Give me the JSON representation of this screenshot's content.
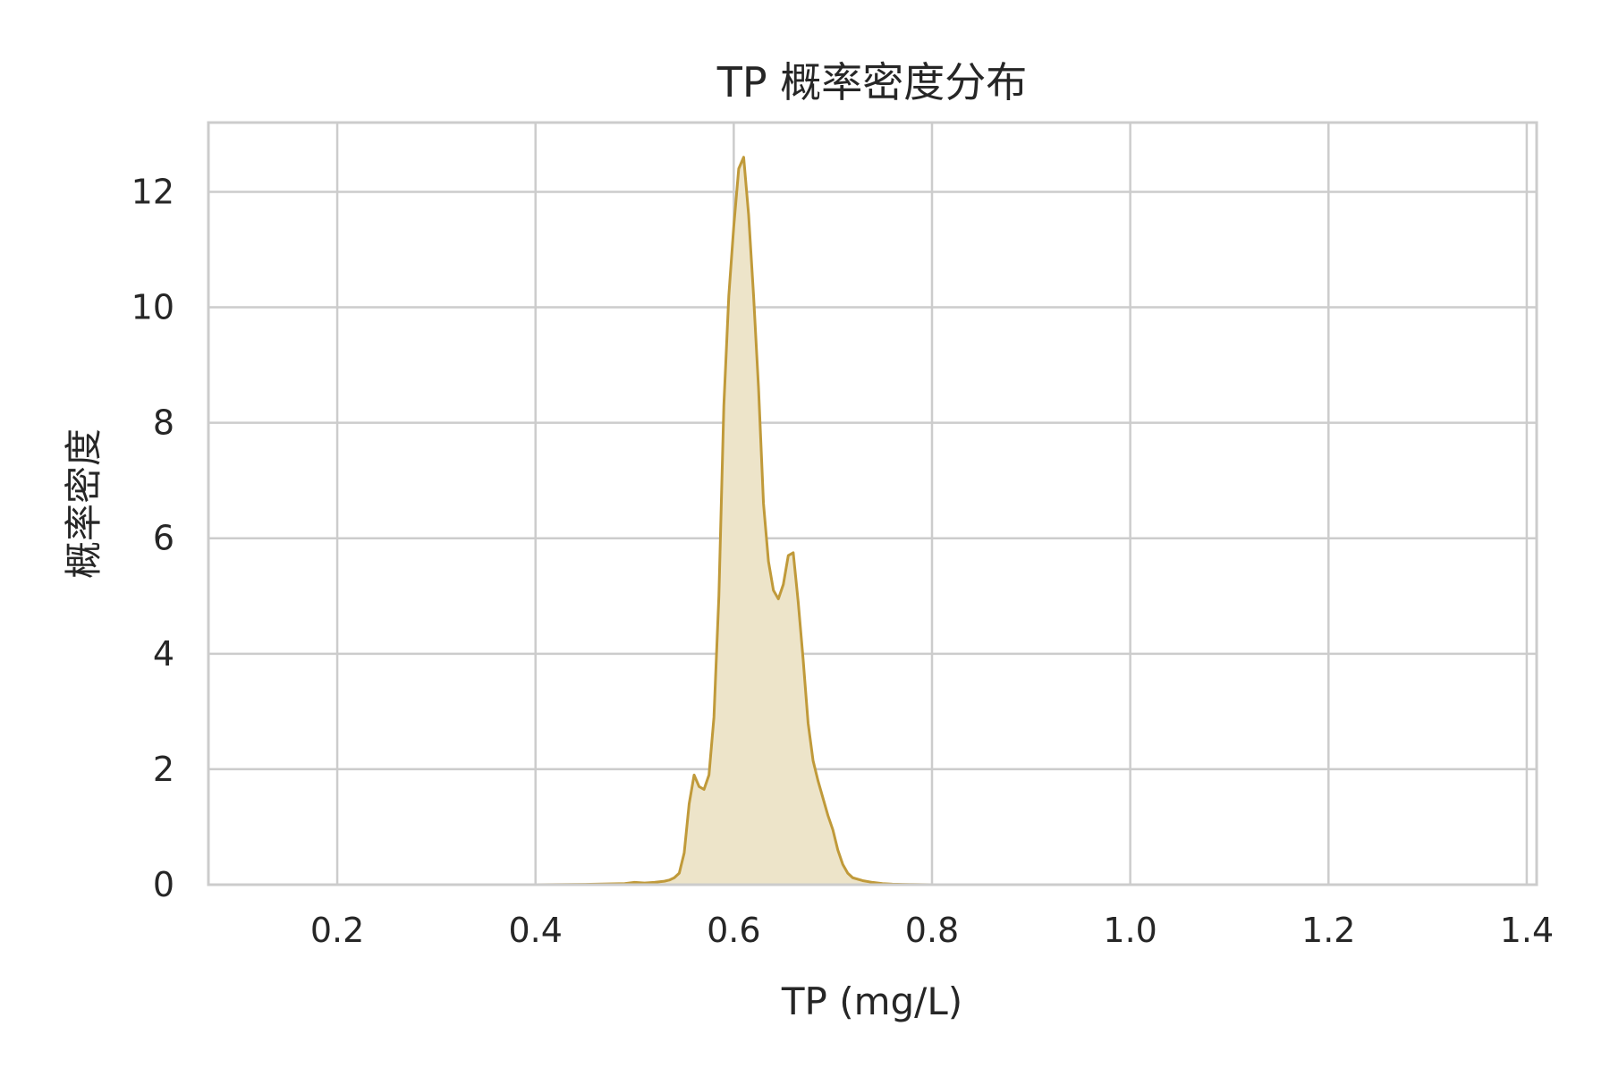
{
  "chart_data": {
    "type": "area",
    "title": "TP 概率密度分布",
    "xlabel": "TP (mg/L)",
    "ylabel": "概率密度",
    "xlim": [
      0.07,
      1.41
    ],
    "ylim": [
      0,
      13.2
    ],
    "x_ticks": [
      "0.2",
      "0.4",
      "0.6",
      "0.8",
      "1.0",
      "1.2",
      "1.4"
    ],
    "y_ticks": [
      "0",
      "2",
      "4",
      "6",
      "8",
      "10",
      "12"
    ],
    "grid": true,
    "colors": {
      "line": "#C09A3A",
      "fill": "#EDE4C9",
      "grid": "#CCCCCC",
      "frame": "#CCCCCC"
    },
    "series": [
      {
        "x": [
          0.4,
          0.45,
          0.49,
          0.5,
          0.51,
          0.52,
          0.53,
          0.535,
          0.54,
          0.545,
          0.55,
          0.555,
          0.56,
          0.565,
          0.57,
          0.575,
          0.58,
          0.585,
          0.59,
          0.595,
          0.6,
          0.605,
          0.61,
          0.615,
          0.62,
          0.625,
          0.63,
          0.635,
          0.64,
          0.645,
          0.65,
          0.655,
          0.66,
          0.665,
          0.67,
          0.675,
          0.68,
          0.685,
          0.69,
          0.695,
          0.7,
          0.705,
          0.71,
          0.715,
          0.72,
          0.73,
          0.74,
          0.75,
          0.76,
          0.77,
          0.78,
          0.79,
          0.8,
          0.82,
          0.85,
          0.9,
          1.0,
          1.38
        ],
        "y": [
          0.0,
          0.005,
          0.02,
          0.04,
          0.03,
          0.04,
          0.06,
          0.08,
          0.12,
          0.2,
          0.55,
          1.4,
          1.9,
          1.7,
          1.65,
          1.9,
          2.9,
          5.0,
          8.3,
          10.2,
          11.4,
          12.4,
          12.6,
          11.6,
          10.2,
          8.6,
          6.6,
          5.6,
          5.1,
          4.95,
          5.2,
          5.7,
          5.75,
          4.9,
          3.9,
          2.8,
          2.15,
          1.8,
          1.5,
          1.2,
          0.95,
          0.6,
          0.35,
          0.2,
          0.12,
          0.07,
          0.04,
          0.02,
          0.01,
          0.005,
          0.003,
          0.002,
          0.001,
          0.0005,
          0.0002,
          0.0001,
          0.0,
          0.0
        ]
      }
    ]
  }
}
